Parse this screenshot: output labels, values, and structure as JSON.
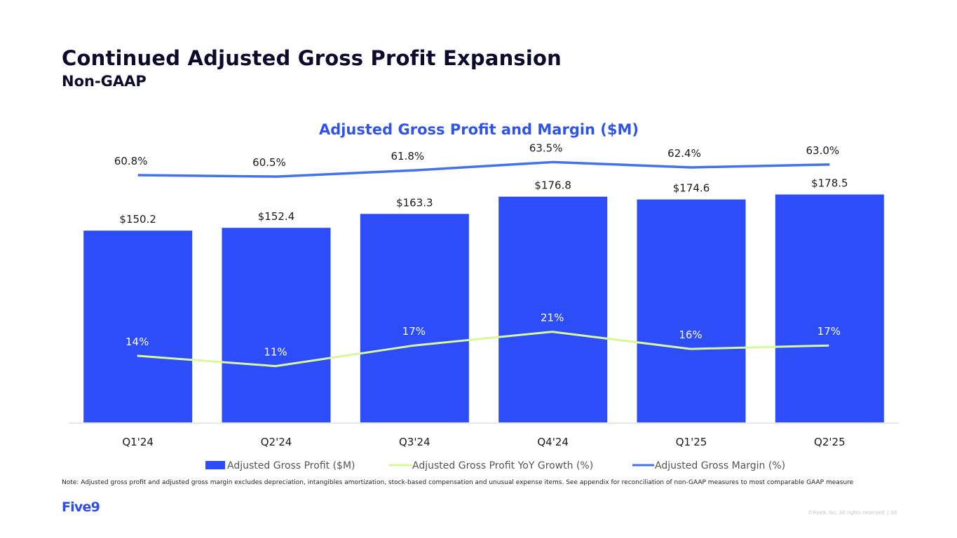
{
  "slide": {
    "title": "Continued Adjusted Gross Profit Expansion",
    "subtitle": "Non-GAAP",
    "note": "Note: Adjusted gross profit and adjusted gross margin excludes depreciation, intangibles amortization, stock-based compensation and unusual expense items. See appendix for reconciliation of non-GAAP measures to most comparable GAAP measure",
    "logo_text": "Five9",
    "copyright": "©Five9, Inc. All rights reserved. | 10"
  },
  "colors": {
    "bar": "#2c4df7",
    "growth_line": "#d9f89a",
    "margin_line": "#4472e8",
    "chart_title": "#3154e8",
    "text": "#1a1a1a",
    "growth_label": "#ffffff",
    "legend_text": "#555555",
    "axis": "#e0e0e0"
  },
  "chart_data": {
    "type": "bar",
    "title": "Adjusted Gross Profit and Margin ($M)",
    "categories": [
      "Q1'24",
      "Q2'24",
      "Q3'24",
      "Q4'24",
      "Q1'25",
      "Q2'25"
    ],
    "series": [
      {
        "name": "Adjusted Gross Profit ($M)",
        "type": "bar",
        "values": [
          150.2,
          152.4,
          163.3,
          176.8,
          174.6,
          178.5
        ],
        "labels": [
          "$150.2",
          "$152.4",
          "$163.3",
          "$176.8",
          "$174.6",
          "$178.5"
        ]
      },
      {
        "name": "Adjusted Gross Profit YoY Growth (%)",
        "type": "line",
        "values": [
          14,
          11,
          17,
          21,
          16,
          17
        ],
        "labels": [
          "14%",
          "11%",
          "17%",
          "21%",
          "16%",
          "17%"
        ]
      },
      {
        "name": "Adjusted Gross Margin (%)",
        "type": "line",
        "values": [
          60.8,
          60.5,
          61.8,
          63.5,
          62.4,
          63.0
        ],
        "labels": [
          "60.8%",
          "60.5%",
          "61.8%",
          "63.5%",
          "62.4%",
          "63.0%"
        ]
      }
    ],
    "legend_position": "bottom"
  }
}
